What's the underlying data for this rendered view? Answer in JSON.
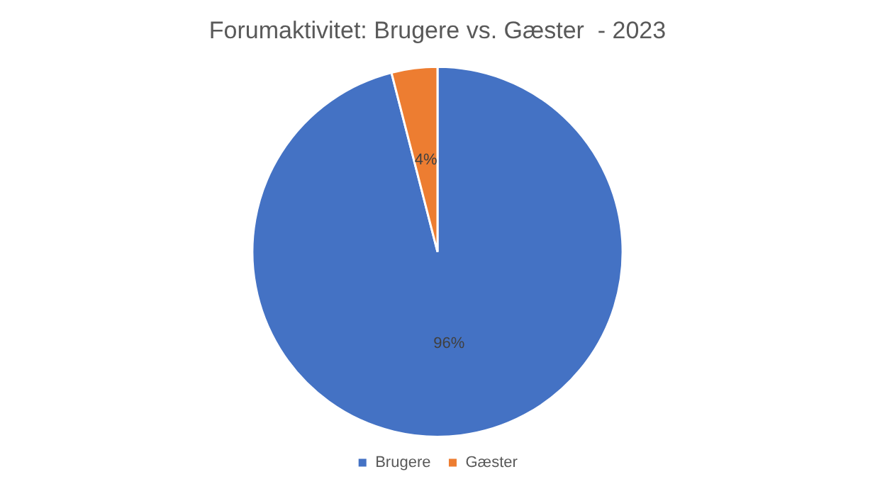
{
  "chart_data": {
    "type": "pie",
    "title": "Forumaktivitet: Brugere vs. Gæster  - 2023",
    "categories": [
      "Brugere",
      "Gæster"
    ],
    "values": [
      96,
      4
    ],
    "colors": [
      "#4472c4",
      "#ed7d31"
    ],
    "value_labels": [
      "96%",
      "4%"
    ],
    "legend": "bottom"
  }
}
